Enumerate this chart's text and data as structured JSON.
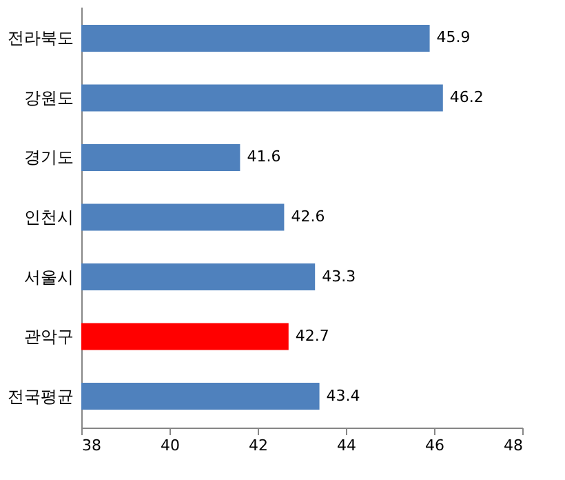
{
  "chart_data": {
    "type": "bar",
    "orientation": "horizontal",
    "categories": [
      "전라북도",
      "강원도",
      "경기도",
      "인천시",
      "서울시",
      "관악구",
      "전국평균"
    ],
    "values": [
      45.9,
      46.2,
      41.6,
      42.6,
      43.3,
      42.7,
      43.4
    ],
    "colors": [
      "#4f81bd",
      "#4f81bd",
      "#4f81bd",
      "#4f81bd",
      "#4f81bd",
      "#ff0000",
      "#4f81bd"
    ],
    "xlim": [
      38,
      48
    ],
    "xticks": [
      38,
      40,
      42,
      44,
      46,
      48
    ],
    "data_labels": true
  }
}
